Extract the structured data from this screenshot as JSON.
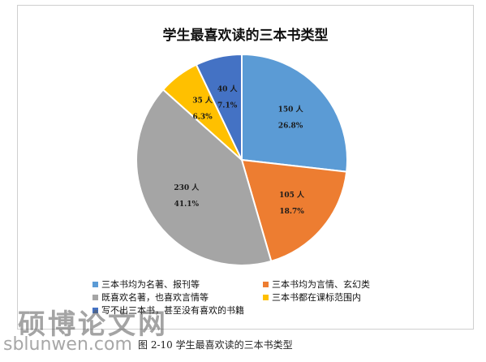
{
  "chart_data": {
    "type": "pie",
    "title": "学生最喜欢读的三本书类型",
    "slices": [
      {
        "name": "三本书均为名著、报刊等",
        "count": "150 人",
        "percent": "26.8%",
        "value": 26.8,
        "color": "#5b9bd5"
      },
      {
        "name": "三本书均为言情、玄幻类",
        "count": "105 人",
        "percent": "18.7%",
        "value": 18.7,
        "color": "#ed7d31"
      },
      {
        "name": "既喜欢名著，也喜欢言情等",
        "count": "230 人",
        "percent": "41.1%",
        "value": 41.1,
        "color": "#a5a5a5"
      },
      {
        "name": "三本书都在课标范围内",
        "count": "35 人",
        "percent": "6.3%",
        "value": 6.3,
        "color": "#ffc000"
      },
      {
        "name": "写不出三本书，甚至没有喜欢的书籍",
        "count": "40 人",
        "percent": "7.1%",
        "value": 7.1,
        "color": "#4472c4"
      }
    ],
    "legend_position": "bottom"
  },
  "watermark": {
    "logo": "硕博论文网",
    "url": "sblunwen.com"
  },
  "caption": "图 2-10  学生最喜欢读的三本书类型"
}
